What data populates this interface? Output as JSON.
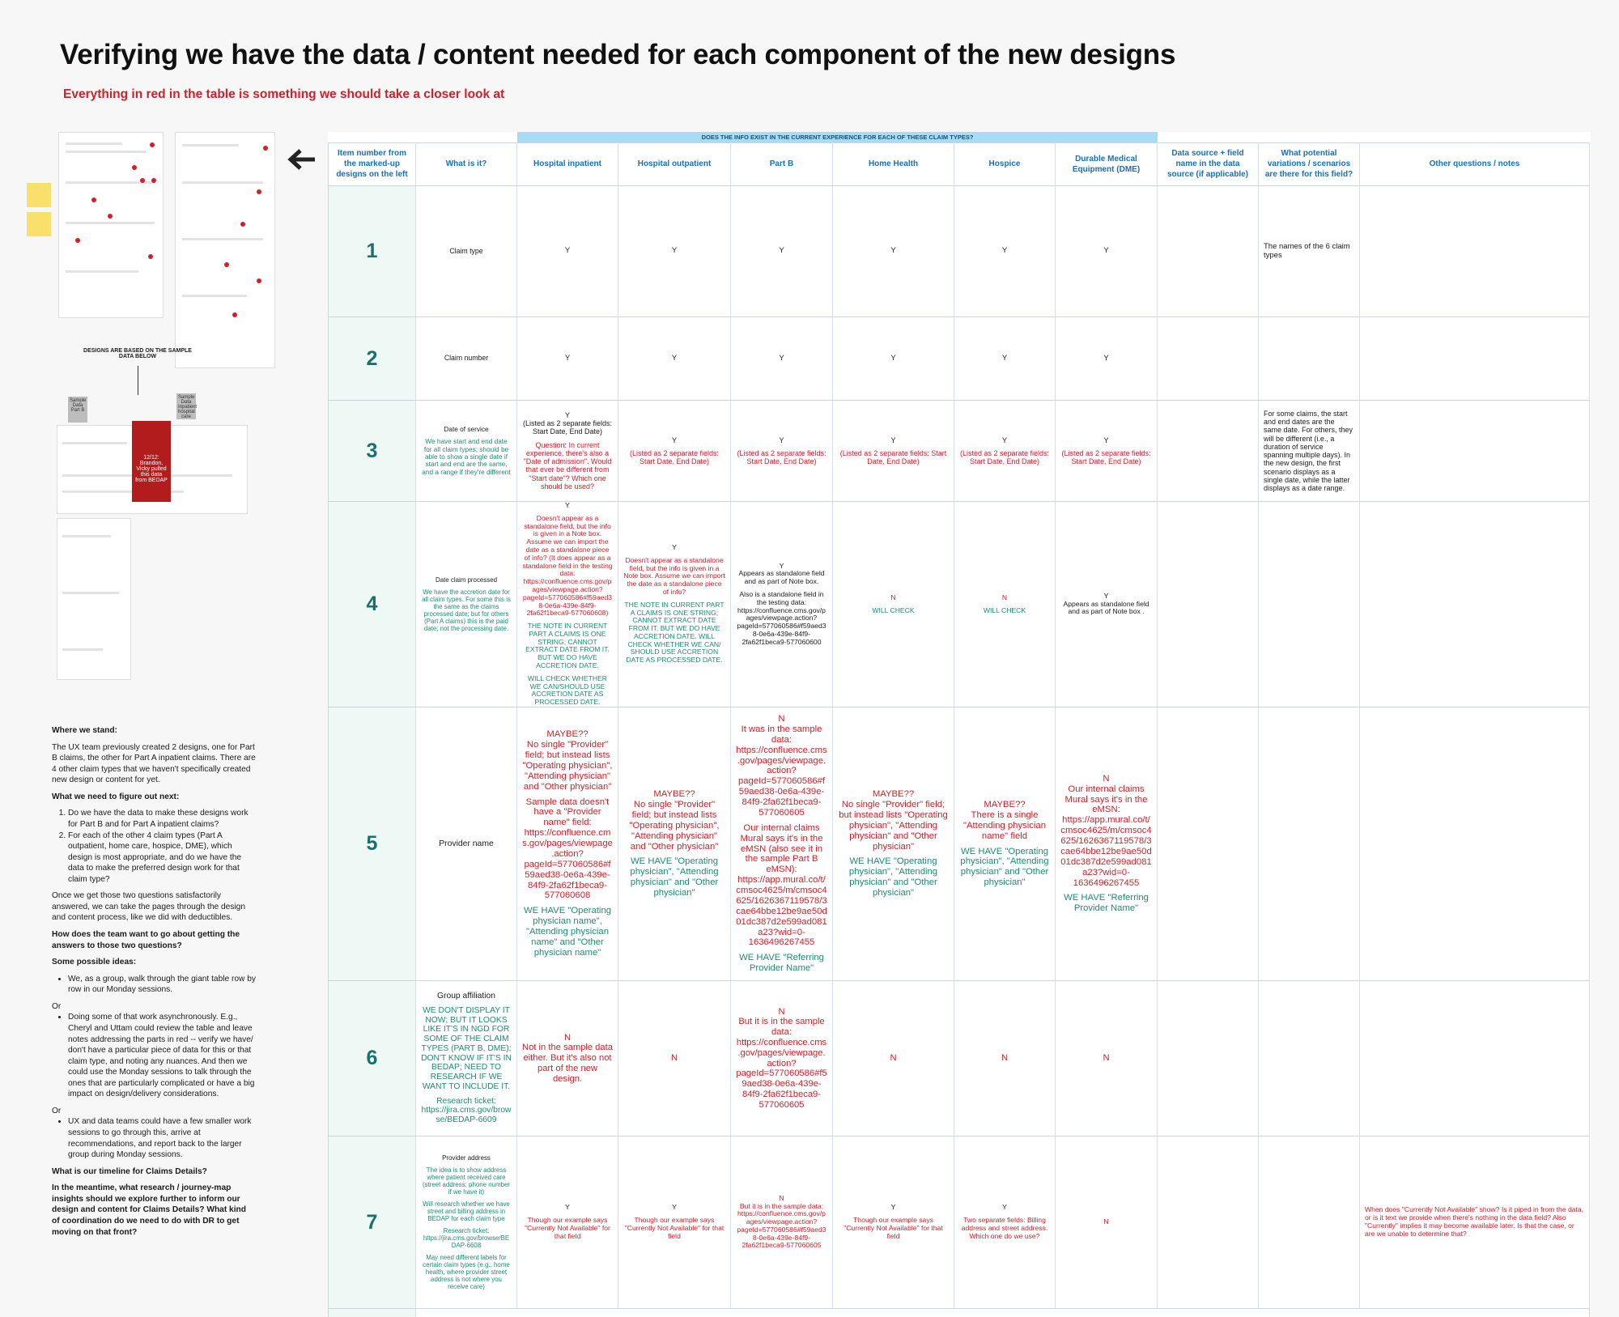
{
  "header": {
    "title": "Verifying we have the data / content needed for each component of the new designs",
    "subtitle": "Everything in red in the table is something we should take a closer look at"
  },
  "left_panel": {
    "caption": "Designs are based on the sample data below",
    "sample_labels": [
      "Sample Data Part B",
      "Sample Data Inpatient hospital care"
    ],
    "note_card": "12/12: Brandon, Vicky pulled this data from BEDAP"
  },
  "notes": [
    {
      "kind": "heading",
      "text": "Where we stand:"
    },
    {
      "kind": "paragraph",
      "text": "The UX team previously created 2 designs, one for Part B claims, the other for Part A inpatient claims. There are 4 other claim types that we haven't specifically created new design or content for yet."
    },
    {
      "kind": "heading",
      "text": "What we need to figure out next:"
    },
    {
      "kind": "ordered",
      "items": [
        "Do we have the data to make these designs work for Part B and for Part A inpatient claims?",
        "For each of the other 4 claim types (Part A outpatient, home care, hospice, DME), which design is most appropriate, and do we have the data to make the preferred design work for that claim type?"
      ]
    },
    {
      "kind": "paragraph",
      "text": "Once we get those two questions satisfactorily answered, we can take the pages through the design and content process, like we did with deductibles."
    },
    {
      "kind": "heading",
      "text": "How does the team want to go about getting the answers to those two questions?"
    },
    {
      "kind": "heading",
      "text": "Some possible ideas:"
    },
    {
      "kind": "bullets",
      "items": [
        "We, as a group, walk through the giant table row by row in our Monday sessions."
      ]
    },
    {
      "kind": "or",
      "text": "Or"
    },
    {
      "kind": "bullets",
      "items": [
        "Doing some of that work asynchronously. E.g., Cheryl and Uttam could review the table and leave notes addressing the parts in red -- verify we have/ don't have a particular piece of data for this or that claim type, and noting any nuances. And then we could use the Monday sessions to talk through the ones that are particularly complicated or have a big impact on design/delivery considerations."
      ]
    },
    {
      "kind": "or",
      "text": "Or"
    },
    {
      "kind": "bullets",
      "items": [
        "UX and data teams could have a few smaller work sessions to go through this, arrive at recommendations, and report back to the larger group during Monday sessions."
      ]
    },
    {
      "kind": "heading",
      "text": "What is our timeline for Claims Details?"
    },
    {
      "kind": "heading",
      "text": "In the meantime, what research / journey-map insights should we explore further to inform our design and content for Claims Details? What kind of coordination do we need to do with DR to get moving on that front?"
    }
  ],
  "table": {
    "group_header": "Does the info exist in the current experience for each of these claim types?",
    "columns": [
      "Item number from the marked-up designs on the left",
      "What is it?",
      "Hospital inpatient",
      "Hospital outpatient",
      "Part B",
      "Home Health",
      "Hospice",
      "Durable Medical Equipment (DME)",
      "Data source + field name in the data source (if applicable)",
      "What potential variations / scenarios are there for this field?",
      "Other questions / notes"
    ],
    "rows": [
      {
        "number": "1",
        "what": [
          {
            "text": "Claim type"
          }
        ],
        "cells": [
          [
            {
              "text": "Y"
            }
          ],
          [
            {
              "text": "Y"
            }
          ],
          [
            {
              "text": "Y"
            }
          ],
          [
            {
              "text": "Y"
            }
          ],
          [
            {
              "text": "Y"
            }
          ],
          [
            {
              "text": "Y"
            }
          ],
          null,
          [
            {
              "text": "The names of the 6 claim types"
            }
          ],
          null
        ]
      },
      {
        "number": "2",
        "what": [
          {
            "text": "Claim number"
          }
        ],
        "cells": [
          [
            {
              "text": "Y"
            }
          ],
          [
            {
              "text": "Y"
            }
          ],
          [
            {
              "text": "Y"
            }
          ],
          [
            {
              "text": "Y"
            }
          ],
          [
            {
              "text": "Y"
            }
          ],
          [
            {
              "text": "Y"
            }
          ],
          null,
          null,
          null
        ]
      },
      {
        "number": "3",
        "what": [
          {
            "text": "Date of service"
          },
          {
            "text": "We have start and end date for all claim types; should be able to show a single date if start and end are the same, and a range if they're different",
            "color": "#1f8a74"
          }
        ],
        "cells": [
          [
            {
              "text": "Y\n(Listed as 2 separate fields: Start Date, End Date)"
            },
            {
              "text": "Question: In current experience, there's also a \"Date of admission\". Would that ever be different from \"Start date\"? Which one should be used?",
              "color": "#d0202a"
            }
          ],
          [
            {
              "text": "Y"
            },
            {
              "text": "(Listed as 2 separate fields: Start Date, End Date)",
              "color": "#d0202a"
            }
          ],
          [
            {
              "text": "Y"
            },
            {
              "text": "(Listed as 2 separate fields: Start Date, End Date)",
              "color": "#d0202a"
            }
          ],
          [
            {
              "text": "Y"
            },
            {
              "text": "(Listed as 2 separate fields: Start Date, End Date)",
              "color": "#d0202a"
            }
          ],
          [
            {
              "text": "Y"
            },
            {
              "text": "(Listed as 2 separate fields: Start Date, End Date)",
              "color": "#d0202a"
            }
          ],
          [
            {
              "text": "Y"
            },
            {
              "text": "(Listed as 2 separate fields: Start Date, End Date)",
              "color": "#d0202a"
            }
          ],
          null,
          [
            {
              "text": "For some claims, the start and end dates are the same date. For others, they will be different (i.e., a duration of service spanning multiple days). In the new design, the first scenario displays as a single date, while the latter displays as a date range."
            }
          ],
          null
        ]
      },
      {
        "number": "4",
        "what": [
          {
            "text": "Date claim processed"
          },
          {
            "text": "We have the accretion date for all claim types. For some this is the same as the claims processed date; but for others (Part A claims) this is the paid date; not the processing date.",
            "color": "#1f8a74"
          }
        ],
        "cells": [
          [
            {
              "text": "Y"
            },
            {
              "text": "Doesn't appear as a standalone field, but the info is given in a Note box. Assume we can import the date as a standalone piece of info? (It does appear as a standalone field in the testing data: https://confluence.cms.gov/pages/viewpage.action?pageId=577060586#f59aed38-0e6a-439e-84f9-2fa62f1beca9-577060608)",
              "color": "#d0202a"
            },
            {
              "text": "THE NOTE IN CURRENT PART A CLAIMS IS ONE STRING; CANNOT EXTRACT DATE FROM IT. BUT WE DO HAVE ACCRETION DATE.",
              "color": "#1f8a74"
            },
            {
              "text": "WILL CHECK WHETHER WE CAN/SHOULD USE ACCRETION DATE AS PROCESSED DATE.",
              "color": "#1f8a74"
            }
          ],
          [
            {
              "text": "Y"
            },
            {
              "text": "Doesn't appear as a standalone field, but the info is given in a Note box. Assume we can import the date as a standalone piece of info?",
              "color": "#d0202a"
            },
            {
              "text": "THE NOTE IN CURRENT PART A CLAIMS IS ONE STRING; CANNOT EXTRACT DATE FROM IT. BUT WE DO HAVE ACCRETION DATE. WILL CHECK WHETHER WE CAN/ SHOULD USE ACCRETION DATE AS PROCESSED DATE.",
              "color": "#1f8a74"
            }
          ],
          [
            {
              "text": "Y\nAppears as standalone field and as part of Note box."
            },
            {
              "text": "Also is a standalone field in the testing data: https://confluence.cms.gov/pages/viewpage.action?pageId=577060586#f59aed38-0e6a-439e-84f9-2fa62f1beca9-577060600"
            }
          ],
          [
            {
              "text": "N",
              "color": "#d0202a"
            },
            {
              "text": "WILL CHECK",
              "color": "#1f8a74"
            }
          ],
          [
            {
              "text": "N",
              "color": "#d0202a"
            },
            {
              "text": "WILL CHECK",
              "color": "#1f8a74"
            }
          ],
          [
            {
              "text": "Y\nAppears as standalone field and as part of Note box ."
            }
          ],
          null,
          null,
          null
        ]
      },
      {
        "number": "5",
        "what": [
          {
            "text": "Provider name"
          }
        ],
        "cells": [
          [
            {
              "text": "MAYBE??\nNo single \"Provider\" field; but instead lists \"Operating physician\", \"Attending physician\" and \"Other physician\"",
              "color": "#d0202a"
            },
            {
              "text": "Sample data doesn't have a \"Provider name\" field: https://confluence.cms.gov/pages/viewpage.action?pageId=577060586#f59aed38-0e6a-439e-84f9-2fa62f1beca9-577060608",
              "color": "#d0202a"
            },
            {
              "text": "WE HAVE \"Operating physician name\", \"Attending physician name\" and \"Other physician name\"",
              "color": "#1f8a74"
            }
          ],
          [
            {
              "text": "MAYBE??\nNo single \"Provider\" field; but instead lists \"Operating physician\", \"Attending physician\" and \"Other physician\"",
              "color": "#d0202a"
            },
            {
              "text": "WE HAVE \"Operating physician\", \"Attending physician\" and \"Other physician\"",
              "color": "#1f8a74"
            }
          ],
          [
            {
              "text": "N\nIt was in the sample data: https://confluence.cms.gov/pages/viewpage.action?pageId=577060586#f59aed38-0e6a-439e-84f9-2fa62f1beca9-577060605",
              "color": "#d0202a"
            },
            {
              "text": "Our internal claims Mural says it's in the eMSN (also see it in the sample Part B eMSN): https://app.mural.co/t/cmsoc4625/m/cmsoc4625/1626367119578/3cae64bbe12be9ae50d01dc387d2e599ad081a23?wid=0-1636496267455",
              "color": "#d0202a"
            },
            {
              "text": "WE HAVE \"Referring Provider Name\"",
              "color": "#1f8a74"
            }
          ],
          [
            {
              "text": "MAYBE??\nNo single \"Provider\" field; but instead lists \"Operating physician\", \"Attending physician\" and \"Other physician\"",
              "color": "#d0202a"
            },
            {
              "text": "WE HAVE \"Operating physician\", \"Attending physician\" and \"Other physician\"",
              "color": "#1f8a74"
            }
          ],
          [
            {
              "text": "MAYBE??\nThere is a single \"Attending physician name\" field",
              "color": "#d0202a"
            },
            {
              "text": "WE HAVE \"Operating physician\", \"Attending physician\" and \"Other physician\"",
              "color": "#1f8a74"
            }
          ],
          [
            {
              "text": "N\nOur internal claims Mural says it's in the eMSN: https://app.mural.co/t/cmsoc4625/m/cmsoc4625/1626367119578/3cae64bbe12be9ae50d01dc387d2e599ad081a23?wid=0-1636496267455",
              "color": "#d0202a"
            },
            {
              "text": "WE HAVE \"Referring Provider Name\"",
              "color": "#1f8a74"
            }
          ],
          null,
          null,
          null
        ]
      },
      {
        "number": "6",
        "what": [
          {
            "text": "Group affiliation"
          },
          {
            "text": "WE DON'T DISPLAY IT NOW; BUT IT LOOKS LIKE IT'S IN NGD FOR SOME OF THE CLAIM TYPES (PART B, DME); DON'T KNOW IF IT'S IN BEDAP; NEED TO RESEARCH IF WE WANT TO INCLUDE IT.",
            "color": "#1f8a74"
          },
          {
            "text": "Research ticket: https://jira.cms.gov/browse/BEDAP-6609",
            "color": "#1f8a74"
          }
        ],
        "cells": [
          [
            {
              "text": "N\nNot in the sample data either. But it's also not part of the new design.",
              "color": "#d0202a"
            }
          ],
          [
            {
              "text": "N",
              "color": "#d0202a"
            }
          ],
          [
            {
              "text": "N\nBut it is in the sample data: https://confluence.cms.gov/pages/viewpage.action?pageId=577060586#f59aed38-0e6a-439e-84f9-2fa62f1beca9-577060605",
              "color": "#d0202a"
            }
          ],
          [
            {
              "text": "N",
              "color": "#d0202a"
            }
          ],
          [
            {
              "text": "N",
              "color": "#d0202a"
            }
          ],
          [
            {
              "text": "N",
              "color": "#d0202a"
            }
          ],
          null,
          null,
          null
        ]
      },
      {
        "number": "7",
        "what": [
          {
            "text": "Provider address"
          },
          {
            "text": "The idea is to show address where patient received care (street address; phone number if we have it)",
            "color": "#1f8a74"
          },
          {
            "text": "Will research whether we have street and billing address in BEDAP for each claim type",
            "color": "#1f8a74"
          },
          {
            "text": "Research ticket: https://jira.cms.gov/browse/BEDAP-6608",
            "color": "#1f8a74"
          },
          {
            "text": "May need different labels for certain claim types (e.g., home health, where provider street address is not where you receive care)",
            "color": "#1f8a74"
          }
        ],
        "cells": [
          [
            {
              "text": "Y"
            },
            {
              "text": "Though our example says \"Currently Not Available\" for that field",
              "color": "#d0202a"
            }
          ],
          [
            {
              "text": "Y"
            },
            {
              "text": "Though our example says \"Currently Not Available\" for that field",
              "color": "#d0202a"
            }
          ],
          [
            {
              "text": "N\nBut it is in the sample data: https://confluence.cms.gov/pages/viewpage.action?pageId=577060586#f59aed38-0e6a-439e-84f9-2fa62f1beca9-577060605",
              "color": "#d0202a"
            }
          ],
          [
            {
              "text": "Y"
            },
            {
              "text": "Though our example says \"Currently Not Available\" for that field",
              "color": "#d0202a"
            }
          ],
          [
            {
              "text": "Y"
            },
            {
              "text": "Two separate fields: Billing address and street address. Which one do we use?",
              "color": "#d0202a"
            }
          ],
          [
            {
              "text": "N",
              "color": "#d0202a"
            }
          ],
          null,
          null,
          [
            {
              "text": "When does \"Currently Not Available\" show? Is it piped in from the data, or is it text we provide when there's nothing in the data field? Also \"Currently\" implies it may become available later. Is that the case, or are we unable to determine that?",
              "color": "#d0202a"
            }
          ]
        ]
      }
    ]
  }
}
